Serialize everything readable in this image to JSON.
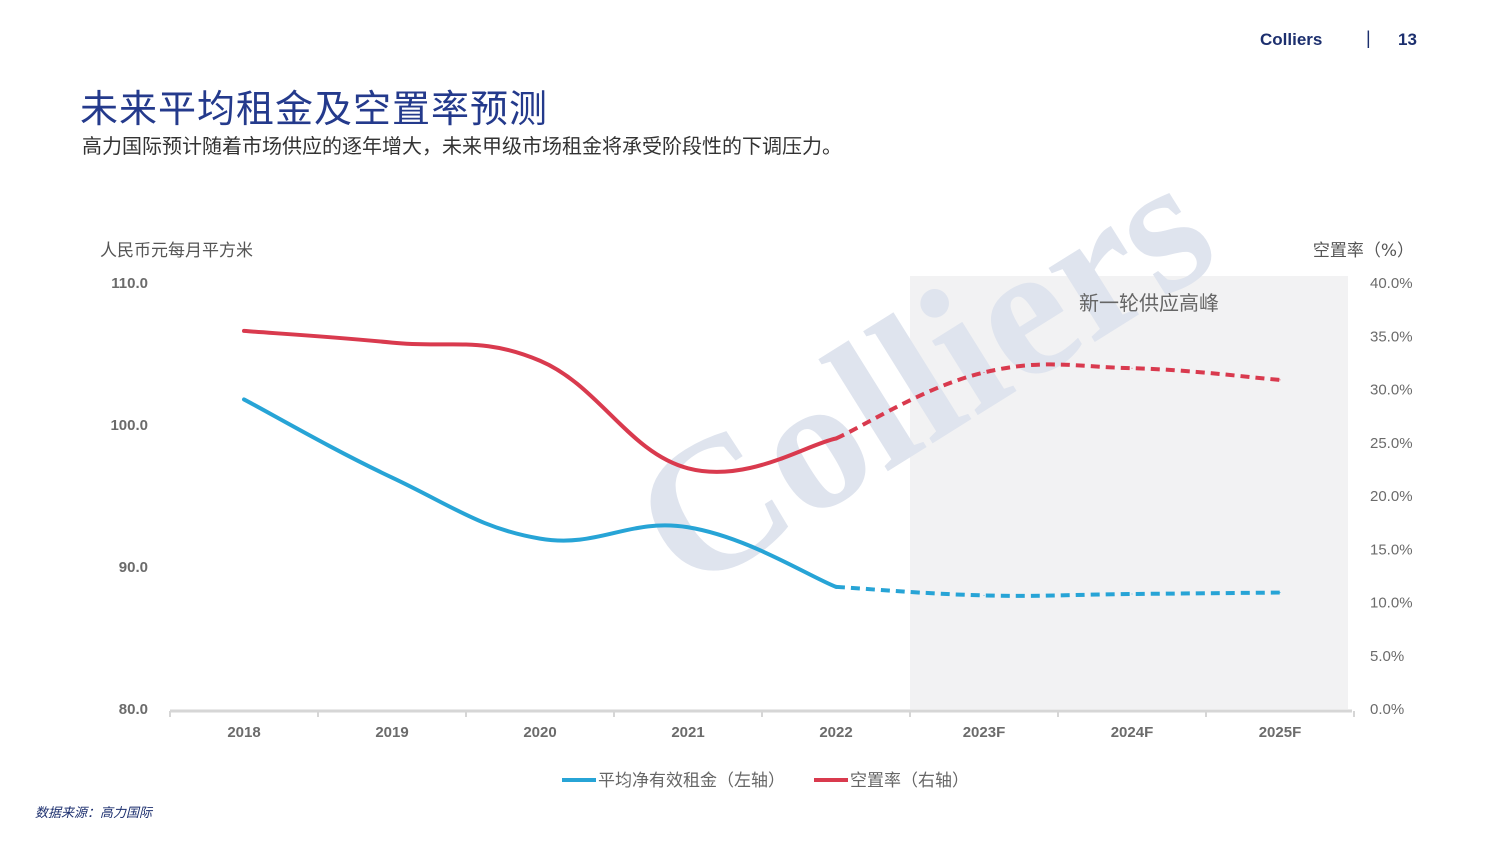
{
  "header": {
    "brand": "Colliers",
    "separator": "|",
    "page_number": "13"
  },
  "page_title": "未来平均租金及空置率预测",
  "subtitle": "高力国际预计随着市场供应的逐年增大，未来甲级市场租金将承受阶段性的下调压力。",
  "source": "数据来源：高力国际",
  "colors": {
    "rent": "#27a4d6",
    "vacancy": "#d93a4e",
    "shade": "#f2f2f3",
    "title": "#243a8c"
  },
  "chart_data": {
    "type": "line",
    "categories": [
      "2018",
      "2019",
      "2020",
      "2021",
      "2022",
      "2023F",
      "2024F",
      "2025F"
    ],
    "series": [
      {
        "name": "平均净有效租金（左轴）",
        "axis": "left",
        "values": [
          101.8,
          96.3,
          92.0,
          92.8,
          88.6,
          88.0,
          88.1,
          88.2
        ],
        "dashed_from_index": 4
      },
      {
        "name": "空置率（右轴）",
        "axis": "right",
        "values": [
          35.5,
          34.4,
          32.7,
          22.6,
          25.4,
          31.6,
          32.0,
          30.9
        ],
        "dashed_from_index": 4
      }
    ],
    "ylabel_left": "人民币元每月平方米",
    "ylabel_right": "空置率（%）",
    "ylim_left": [
      80,
      110
    ],
    "yticks_left": [
      "110.0",
      "100.0",
      "90.0",
      "80.0"
    ],
    "ylim_right": [
      0,
      40
    ],
    "yticks_right": [
      "40.0%",
      "35.0%",
      "30.0%",
      "25.0%",
      "20.0%",
      "15.0%",
      "10.0%",
      "5.0%",
      "0.0%"
    ],
    "shaded_region": {
      "from_category": "2023F",
      "to_category": "2025F",
      "label": "新一轮供应高峰"
    },
    "grid": false,
    "legend_position": "bottom"
  }
}
